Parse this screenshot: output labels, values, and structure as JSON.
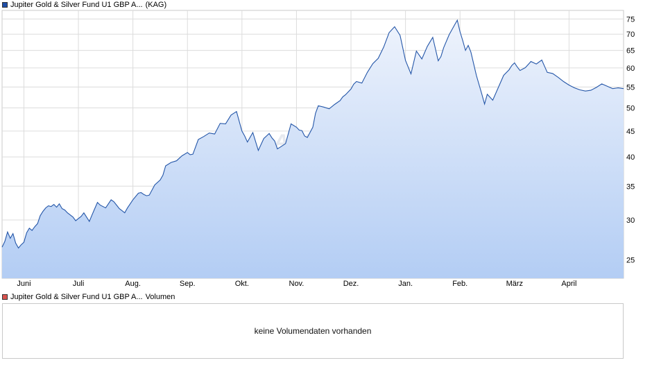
{
  "legend": {
    "price_name": "Jupiter Gold & Silver Fund U1 GBP A...",
    "price_suffix": "(KAG)",
    "price_color": "#1f4fa8",
    "volume_name": "Jupiter Gold & Silver Fund U1 GBP A...",
    "volume_suffix": "Volumen",
    "volume_color": "#d9534f"
  },
  "volume_panel": {
    "message": "keine Volumendaten vorhanden"
  },
  "watermark": "ARIVA",
  "chart_data": {
    "type": "area",
    "y_scale": "log",
    "ylim": [
      23,
      78
    ],
    "y_ticks": [
      25,
      30,
      35,
      40,
      45,
      50,
      55,
      60,
      65,
      70,
      75
    ],
    "x_ticks": [
      "Juni",
      "Juli",
      "Aug.",
      "Sep.",
      "Okt.",
      "Nov.",
      "Dez.",
      "Jan.",
      "Feb.",
      "März",
      "April"
    ],
    "x_range_months": [
      -0.4,
      11.0
    ],
    "grid": true,
    "line_color": "#2456a8",
    "fill_top": "#eef3fc",
    "fill_bottom": "#b3cdf4",
    "series": [
      {
        "x_months": [
          -0.4,
          -0.35,
          -0.3,
          -0.25,
          -0.2,
          -0.15,
          -0.1,
          -0.05,
          0.0,
          0.05,
          0.1,
          0.15,
          0.2,
          0.25,
          0.3,
          0.35,
          0.4,
          0.45,
          0.5,
          0.55,
          0.6,
          0.65,
          0.7,
          0.75,
          0.8,
          0.85,
          0.9,
          0.95,
          1.0,
          1.05,
          1.1,
          1.15,
          1.2,
          1.25,
          1.3,
          1.35,
          1.4,
          1.5,
          1.55,
          1.6,
          1.65,
          1.7,
          1.75,
          1.8,
          1.85,
          1.9,
          2.0,
          2.05,
          2.1,
          2.15,
          2.2,
          2.25,
          2.3,
          2.4,
          2.5,
          2.55,
          2.6,
          2.7,
          2.8,
          2.9,
          3.0,
          3.05,
          3.1,
          3.2,
          3.3,
          3.4,
          3.5,
          3.6,
          3.7,
          3.8,
          3.9,
          4.0,
          4.05,
          4.1,
          4.2,
          4.3,
          4.4,
          4.5,
          4.55,
          4.6,
          4.65,
          4.7,
          4.8,
          4.9,
          5.0,
          5.05,
          5.1,
          5.15,
          5.2,
          5.3,
          5.35,
          5.4,
          5.5,
          5.6,
          5.7,
          5.8,
          5.85,
          5.9,
          6.0,
          6.05,
          6.1,
          6.2,
          6.3,
          6.4,
          6.5,
          6.6,
          6.7,
          6.8,
          6.9,
          7.0,
          7.1,
          7.2,
          7.3,
          7.4,
          7.5,
          7.6,
          7.65,
          7.7,
          7.8,
          7.9,
          7.95,
          8.0,
          8.05,
          8.1,
          8.15,
          8.2,
          8.3,
          8.4,
          8.45,
          8.5,
          8.6,
          8.7,
          8.8,
          8.9,
          8.95,
          9.0,
          9.05,
          9.1,
          9.2,
          9.3,
          9.4,
          9.5,
          9.55,
          9.6,
          9.7,
          9.8,
          9.9,
          10.0,
          10.1,
          10.2,
          10.3,
          10.4,
          10.5,
          10.6,
          10.7,
          10.8,
          10.9,
          11.0
        ],
        "y": [
          26.5,
          27.2,
          28.4,
          27.6,
          28.2,
          27.0,
          26.4,
          26.8,
          27.1,
          28.3,
          28.9,
          28.6,
          29.1,
          29.5,
          30.6,
          31.2,
          31.7,
          32.0,
          31.9,
          32.2,
          31.8,
          32.3,
          31.6,
          31.4,
          31.0,
          30.7,
          30.4,
          29.9,
          30.2,
          30.5,
          31.0,
          30.4,
          29.8,
          30.7,
          31.6,
          32.5,
          32.1,
          31.7,
          32.3,
          32.9,
          32.6,
          32.1,
          31.6,
          31.3,
          31.0,
          31.7,
          32.9,
          33.4,
          33.9,
          34.0,
          33.7,
          33.5,
          33.6,
          35.2,
          36.0,
          36.8,
          38.4,
          39.0,
          39.3,
          40.2,
          40.8,
          40.4,
          40.5,
          43.3,
          43.9,
          44.6,
          44.4,
          46.6,
          46.5,
          48.4,
          49.2,
          45.0,
          44.0,
          42.8,
          44.7,
          41.2,
          43.5,
          44.5,
          43.6,
          43.0,
          41.5,
          41.8,
          42.5,
          46.5,
          45.8,
          45.2,
          45.1,
          44.0,
          43.7,
          45.8,
          48.8,
          50.5,
          50.2,
          49.8,
          50.8,
          51.7,
          52.6,
          53.1,
          54.5,
          55.7,
          56.4,
          56.0,
          58.8,
          61.2,
          62.7,
          66.0,
          70.5,
          72.4,
          69.6,
          62.1,
          58.4,
          64.8,
          62.5,
          66.2,
          69.0,
          62.0,
          63.2,
          65.8,
          69.8,
          73.0,
          74.6,
          70.8,
          68.0,
          65.0,
          66.5,
          64.5,
          58.0,
          53.3,
          50.9,
          53.2,
          51.8,
          54.8,
          58.0,
          59.5,
          60.7,
          61.4,
          60.3,
          59.3,
          60.1,
          61.8,
          61.1,
          62.2,
          60.5,
          58.8,
          58.5,
          57.5,
          56.4,
          55.5,
          54.8,
          54.3,
          54.0,
          54.2,
          54.9,
          55.8,
          55.2,
          54.6,
          54.8,
          54.6
        ]
      }
    ]
  }
}
